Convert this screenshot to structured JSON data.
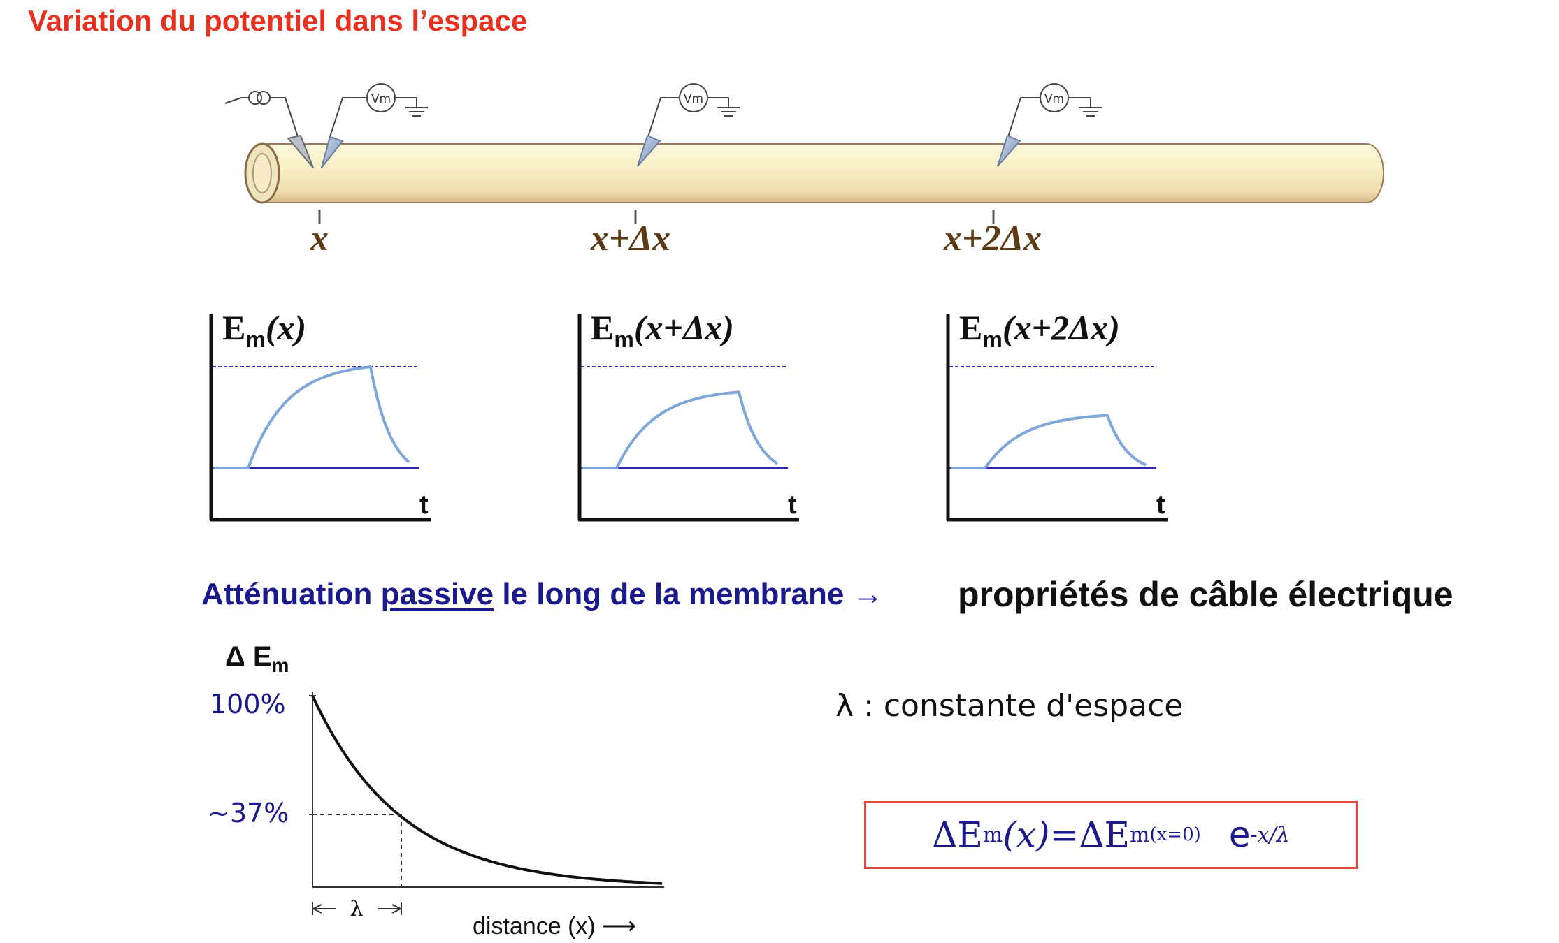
{
  "title": "Variation du potentiel dans l’espace",
  "positions": [
    "x",
    "x+Δx",
    "x+2Δx"
  ],
  "probes": {
    "voltmeter": "Vm"
  },
  "plots": [
    {
      "label_pre": "E",
      "label_sub": "m",
      "label_arg": "(x)",
      "t_label": "t",
      "plateau_fraction": 1.0
    },
    {
      "label_pre": "E",
      "label_sub": "m",
      "label_arg": "(x+Δx)",
      "t_label": "t",
      "plateau_fraction": 0.75
    },
    {
      "label_pre": "E",
      "label_sub": "m",
      "label_arg": "(x+2Δx)",
      "t_label": "t",
      "plateau_fraction": 0.52
    }
  ],
  "attenuation": {
    "part1": "Atténuation ",
    "underlined": "passive",
    "part2": " le long de la membrane ",
    "arrow": "→",
    "result": "propriétés de câble électrique"
  },
  "decay_chart": {
    "y_label_pre": "Δ E",
    "y_label_sub": "m",
    "tick_100": "100%",
    "tick_37": "~37%",
    "lambda_marker": "λ",
    "x_label": "distance (x) ⟶"
  },
  "lambda_def": "λ : constante d'espace",
  "formula": {
    "lhs": "ΔE",
    "lhs_sub": "m",
    "lhs_arg": "(x)",
    "eq": " = ",
    "rhs": "ΔE",
    "rhs_sub": "m",
    "rhs_arg": "(x=0)",
    "exp_base": "e",
    "exponent": "-x/λ"
  },
  "colors": {
    "title": "#e8321f",
    "blue_text": "#1a1a8c",
    "curve": "#7fa6d8",
    "baseline": "#2a2ab0",
    "cylinder": "#f7f0c4",
    "label_brown": "#5b3a14",
    "box_border": "#e0483a"
  }
}
